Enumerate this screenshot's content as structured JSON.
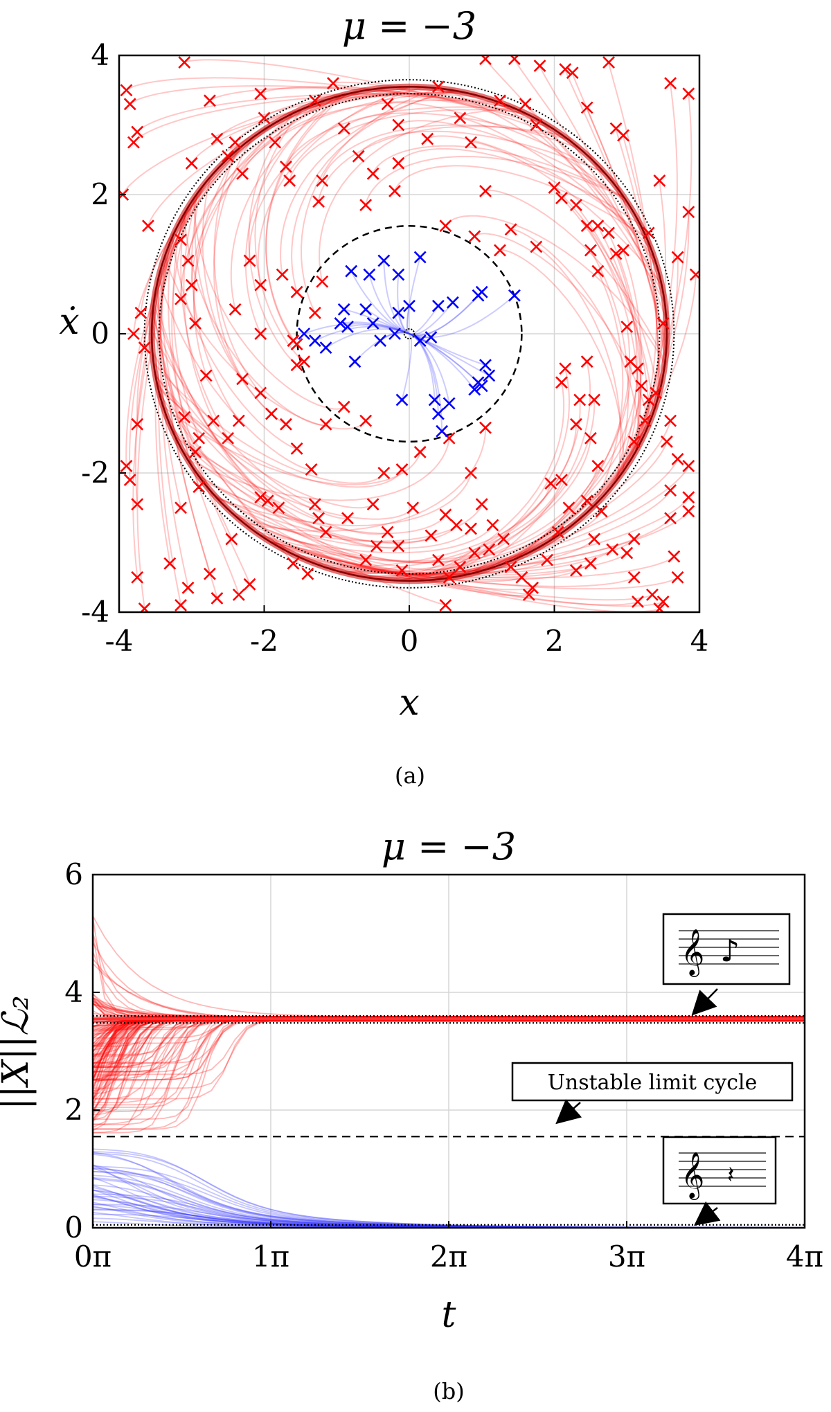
{
  "chart_data": [
    {
      "panel": "(a)",
      "type": "scatter",
      "title": "μ = −3",
      "xlabel": "x",
      "ylabel": "ẋ",
      "xlim": [
        -4,
        4
      ],
      "ylim": [
        -4,
        4
      ],
      "xticks": [
        "-4",
        "-2",
        "0",
        "2",
        "4"
      ],
      "yticks": [
        "-4",
        "-2",
        "0",
        "2",
        "4"
      ],
      "grid": true,
      "series": [
        {
          "color": "#ff0000",
          "marker": "x",
          "points": [
            [
              -3.9,
              3.5
            ],
            [
              -3.85,
              3.3
            ],
            [
              -3.75,
              2.9
            ],
            [
              -3.8,
              2.75
            ],
            [
              -3.95,
              2.0
            ],
            [
              -3.6,
              1.55
            ],
            [
              -3.7,
              0.3
            ],
            [
              -3.8,
              0.0
            ],
            [
              -3.65,
              -0.2
            ],
            [
              -3.75,
              -1.3
            ],
            [
              -3.9,
              -1.9
            ],
            [
              -3.85,
              -2.1
            ],
            [
              -3.75,
              -2.45
            ],
            [
              -3.75,
              -3.5
            ],
            [
              -3.65,
              -3.95
            ],
            [
              -3.1,
              3.9
            ],
            [
              -3.0,
              2.45
            ],
            [
              -2.75,
              3.35
            ],
            [
              -2.65,
              2.8
            ],
            [
              -2.5,
              2.55
            ],
            [
              -2.4,
              2.75
            ],
            [
              -2.3,
              2.3
            ],
            [
              -3.15,
              1.35
            ],
            [
              -3.05,
              1.05
            ],
            [
              -3.0,
              0.7
            ],
            [
              -3.15,
              0.5
            ],
            [
              -2.95,
              0.15
            ],
            [
              -2.8,
              -0.6
            ],
            [
              -3.1,
              -1.2
            ],
            [
              -2.9,
              -1.5
            ],
            [
              -2.95,
              -1.7
            ],
            [
              -2.7,
              -1.25
            ],
            [
              -2.5,
              -1.5
            ],
            [
              -2.35,
              -1.25
            ],
            [
              -3.15,
              -2.5
            ],
            [
              -2.9,
              -2.2
            ],
            [
              -2.75,
              -3.45
            ],
            [
              -2.65,
              -3.8
            ],
            [
              -2.45,
              -2.95
            ],
            [
              -2.35,
              -3.75
            ],
            [
              -2.2,
              -3.6
            ],
            [
              -3.3,
              -3.3
            ],
            [
              -3.05,
              -3.65
            ],
            [
              -3.15,
              -3.9
            ],
            [
              -2.05,
              3.45
            ],
            [
              -2.0,
              3.1
            ],
            [
              -1.85,
              2.75
            ],
            [
              -1.7,
              2.4
            ],
            [
              -1.65,
              2.2
            ],
            [
              -1.3,
              3.35
            ],
            [
              -1.2,
              2.2
            ],
            [
              -1.25,
              1.9
            ],
            [
              -1.05,
              3.6
            ],
            [
              -0.9,
              2.95
            ],
            [
              -0.7,
              2.55
            ],
            [
              -0.6,
              1.85
            ],
            [
              -0.5,
              2.3
            ],
            [
              -0.3,
              3.3
            ],
            [
              -0.15,
              3.0
            ],
            [
              0.25,
              2.8
            ],
            [
              0.4,
              3.55
            ],
            [
              0.7,
              3.1
            ],
            [
              0.85,
              2.75
            ],
            [
              1.05,
              3.95
            ],
            [
              1.25,
              3.35
            ],
            [
              1.45,
              3.95
            ],
            [
              1.6,
              3.3
            ],
            [
              1.75,
              3.0
            ],
            [
              1.05,
              2.05
            ],
            [
              1.4,
              1.5
            ],
            [
              1.25,
              1.2
            ],
            [
              0.9,
              1.4
            ],
            [
              -2.2,
              1.05
            ],
            [
              -2.05,
              0.7
            ],
            [
              -1.75,
              0.85
            ],
            [
              -1.55,
              0.6
            ],
            [
              -1.3,
              0.3
            ],
            [
              -1.2,
              0.75
            ],
            [
              -2.4,
              0.35
            ],
            [
              -2.05,
              0.0
            ],
            [
              -1.6,
              -0.1
            ],
            [
              -1.55,
              -0.45
            ],
            [
              -2.3,
              -0.65
            ],
            [
              -2.05,
              -0.85
            ],
            [
              -1.9,
              -1.15
            ],
            [
              -1.7,
              -1.3
            ],
            [
              -1.55,
              -1.65
            ],
            [
              -1.35,
              -1.95
            ],
            [
              -1.95,
              -2.4
            ],
            [
              -1.8,
              -2.5
            ],
            [
              -1.3,
              -2.45
            ],
            [
              -1.25,
              -2.65
            ],
            [
              -1.15,
              -2.85
            ],
            [
              -0.85,
              -2.65
            ],
            [
              -0.5,
              -2.45
            ],
            [
              -0.3,
              -2.85
            ],
            [
              -0.15,
              -3.05
            ],
            [
              0.05,
              -2.5
            ],
            [
              0.3,
              -2.9
            ],
            [
              0.5,
              -2.6
            ],
            [
              0.65,
              -2.75
            ],
            [
              0.85,
              -2.8
            ],
            [
              1.0,
              -2.45
            ],
            [
              1.15,
              -2.75
            ],
            [
              1.3,
              -2.95
            ],
            [
              -1.6,
              -3.3
            ],
            [
              -1.4,
              -3.45
            ],
            [
              -0.6,
              -3.25
            ],
            [
              -0.45,
              -3.05
            ],
            [
              -0.1,
              -3.4
            ],
            [
              0.4,
              -3.25
            ],
            [
              0.55,
              -3.5
            ],
            [
              0.7,
              -3.35
            ],
            [
              0.9,
              -3.15
            ],
            [
              1.1,
              -3.1
            ],
            [
              1.4,
              -3.35
            ],
            [
              1.55,
              -3.5
            ],
            [
              1.65,
              -3.75
            ],
            [
              0.5,
              -3.9
            ],
            [
              1.95,
              -2.15
            ],
            [
              2.1,
              -2.1
            ],
            [
              2.2,
              -2.5
            ],
            [
              2.45,
              -2.4
            ],
            [
              2.65,
              -2.55
            ],
            [
              2.55,
              -2.95
            ],
            [
              2.05,
              -2.85
            ],
            [
              1.9,
              -3.25
            ],
            [
              1.7,
              -3.65
            ],
            [
              2.3,
              -3.4
            ],
            [
              2.5,
              -3.3
            ],
            [
              2.8,
              -3.1
            ],
            [
              3.1,
              -2.95
            ],
            [
              3.0,
              -3.15
            ],
            [
              3.1,
              -3.5
            ],
            [
              3.15,
              -3.85
            ],
            [
              3.35,
              -3.75
            ],
            [
              3.45,
              -3.95
            ],
            [
              3.5,
              -3.85
            ],
            [
              2.1,
              1.95
            ],
            [
              2.3,
              1.85
            ],
            [
              2.45,
              1.55
            ],
            [
              2.6,
              1.55
            ],
            [
              2.75,
              1.45
            ],
            [
              2.85,
              1.15
            ],
            [
              2.95,
              1.2
            ],
            [
              2.5,
              1.2
            ],
            [
              2.6,
              0.9
            ],
            [
              3.3,
              1.45
            ],
            [
              2.45,
              -0.4
            ],
            [
              2.15,
              -0.5
            ],
            [
              2.1,
              -0.7
            ],
            [
              2.35,
              -0.95
            ],
            [
              2.55,
              -0.95
            ],
            [
              2.3,
              -1.3
            ],
            [
              2.5,
              -1.5
            ],
            [
              2.6,
              -1.9
            ],
            [
              3.05,
              -0.4
            ],
            [
              3.15,
              -0.5
            ],
            [
              3.2,
              -0.75
            ],
            [
              3.3,
              -0.95
            ],
            [
              3.4,
              -0.85
            ],
            [
              3.25,
              -1.25
            ],
            [
              3.1,
              -1.55
            ],
            [
              3.6,
              -1.25
            ],
            [
              3.55,
              -1.55
            ],
            [
              3.7,
              -1.8
            ],
            [
              3.85,
              -1.9
            ],
            [
              3.6,
              -2.25
            ],
            [
              3.85,
              -2.35
            ],
            [
              3.85,
              -2.55
            ],
            [
              3.6,
              -2.65
            ],
            [
              3.65,
              -3.2
            ],
            [
              3.7,
              -3.5
            ],
            [
              2.75,
              3.9
            ],
            [
              2.15,
              3.8
            ],
            [
              2.25,
              3.75
            ],
            [
              1.8,
              3.85
            ],
            [
              2.45,
              3.25
            ],
            [
              2.85,
              2.95
            ],
            [
              2.95,
              2.85
            ],
            [
              2.0,
              2.1
            ],
            [
              3.6,
              3.6
            ],
            [
              3.85,
              3.45
            ],
            [
              3.7,
              1.1
            ],
            [
              3.95,
              0.85
            ],
            [
              3.85,
              1.75
            ],
            [
              3.45,
              2.2
            ],
            [
              3.0,
              0.1
            ],
            [
              3.5,
              0.15
            ],
            [
              -1.55,
              -0.15
            ],
            [
              -1.45,
              -0.4
            ],
            [
              -1.15,
              -1.3
            ],
            [
              -0.9,
              -1.05
            ],
            [
              -0.6,
              -1.25
            ],
            [
              0.15,
              -1.7
            ],
            [
              -0.1,
              -1.95
            ],
            [
              -0.35,
              -2.0
            ],
            [
              0.85,
              -2.0
            ],
            [
              0.55,
              -1.5
            ],
            [
              1.05,
              -1.35
            ],
            [
              -0.15,
              2.45
            ],
            [
              -0.2,
              2.05
            ],
            [
              0.5,
              1.55
            ],
            [
              1.75,
              1.25
            ],
            [
              -2.05,
              -2.35
            ]
          ]
        },
        {
          "color": "#0000ff",
          "marker": "x",
          "points": [
            [
              -0.8,
              0.9
            ],
            [
              -0.55,
              0.85
            ],
            [
              -0.35,
              1.05
            ],
            [
              -0.15,
              0.85
            ],
            [
              0.15,
              1.1
            ],
            [
              0.4,
              0.4
            ],
            [
              0.6,
              0.45
            ],
            [
              0.95,
              0.55
            ],
            [
              1.0,
              0.6
            ],
            [
              1.45,
              0.55
            ],
            [
              -1.15,
              -0.2
            ],
            [
              -1.3,
              -0.1
            ],
            [
              -1.45,
              0.0
            ],
            [
              -0.95,
              0.15
            ],
            [
              -0.9,
              0.35
            ],
            [
              -0.85,
              0.1
            ],
            [
              -0.6,
              0.35
            ],
            [
              -0.5,
              0.15
            ],
            [
              -0.4,
              -0.1
            ],
            [
              -0.2,
              0.0
            ],
            [
              -0.15,
              0.3
            ],
            [
              0.0,
              0.4
            ],
            [
              0.15,
              -0.1
            ],
            [
              0.3,
              -0.05
            ],
            [
              -0.75,
              -0.4
            ],
            [
              -0.1,
              -0.95
            ],
            [
              0.35,
              -0.95
            ],
            [
              0.4,
              -1.15
            ],
            [
              0.45,
              -1.4
            ],
            [
              0.55,
              -1.0
            ],
            [
              0.9,
              -0.8
            ],
            [
              0.95,
              -0.7
            ],
            [
              1.0,
              -0.75
            ],
            [
              1.1,
              -0.6
            ],
            [
              1.05,
              -0.45
            ]
          ]
        }
      ],
      "curves": [
        {
          "name_hint": "stable limit cycle",
          "radius": 3.55,
          "style": "solid dark red with dotted black bounds"
        },
        {
          "name_hint": "unstable limit cycle",
          "radius": 1.55,
          "style": "dashed black"
        },
        {
          "name_hint": "fixed point",
          "radius": 0.07,
          "style": "dotted black"
        }
      ]
    },
    {
      "panel": "(b)",
      "type": "line",
      "title": "μ = −3",
      "xlabel": "t",
      "ylabel": "||X||ℒ₂",
      "xlim": [
        0,
        4
      ],
      "ylim": [
        0,
        6
      ],
      "xticks": [
        "0π",
        "1π",
        "2π",
        "3π",
        "4π"
      ],
      "yticks": [
        "0",
        "2",
        "4",
        "6"
      ],
      "grid": true,
      "series": [
        {
          "color": "#ff0000",
          "settle_value": 3.55,
          "start_min": 1.55,
          "start_max": 5.3,
          "count": 160
        },
        {
          "color": "#0000ff",
          "settle_value": 0.0,
          "start_min": 0.0,
          "start_max": 1.45,
          "count": 40
        }
      ],
      "reference_lines": [
        {
          "value": 3.6,
          "style": "dotted"
        },
        {
          "value": 3.48,
          "style": "dotted"
        },
        {
          "value": 1.55,
          "style": "dashed"
        },
        {
          "value": 0.05,
          "style": "dotted"
        }
      ],
      "annotations": [
        {
          "text": "",
          "icon": "treble-clef-eighth-note",
          "target_value": 3.55
        },
        {
          "text": "Unstable limit cycle",
          "target_value": 1.55
        },
        {
          "text": "",
          "icon": "treble-clef-rest",
          "target_value": 0.05
        }
      ]
    }
  ],
  "captions": {
    "a": "(a)",
    "b": "(b)"
  }
}
